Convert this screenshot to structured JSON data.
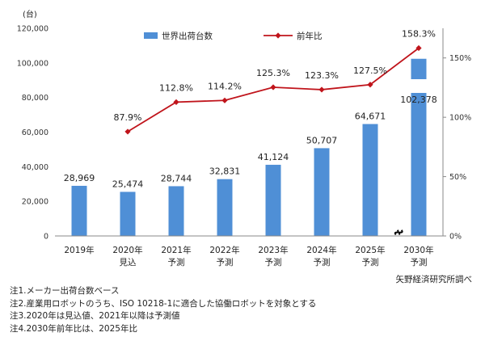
{
  "chart_data": {
    "type": "bar+line",
    "y_unit": "(台)",
    "categories": [
      "2019年",
      "2020年",
      "2021年",
      "2022年",
      "2023年",
      "2024年",
      "2025年",
      "2030年"
    ],
    "category_sublabels": [
      "",
      "見込",
      "予測",
      "予測",
      "予測",
      "予測",
      "予測",
      "予測"
    ],
    "series": [
      {
        "name": "世界出荷台数",
        "type": "bar",
        "axis": "left",
        "color": "#4f8fd6",
        "values": [
          28969,
          25474,
          28744,
          32831,
          41124,
          50707,
          64671,
          102378
        ],
        "labels": [
          "28,969",
          "25,474",
          "28,744",
          "32,831",
          "41,124",
          "50,707",
          "64,671",
          "102,378"
        ]
      },
      {
        "name": "前年比",
        "type": "line",
        "axis": "right",
        "color": "#c0141b",
        "values": [
          null,
          87.9,
          112.8,
          114.2,
          125.3,
          123.3,
          127.5,
          158.3
        ],
        "labels": [
          "",
          "87.9%",
          "112.8%",
          "114.2%",
          "125.3%",
          "123.3%",
          "127.5%",
          "158.3%"
        ]
      }
    ],
    "y_left": {
      "min": 0,
      "max": 120000,
      "ticks": [
        "0",
        "20,000",
        "40,000",
        "60,000",
        "80,000",
        "100,000",
        "120,000"
      ]
    },
    "y_right": {
      "min": 0,
      "max": 175,
      "ticks": [
        "0%",
        "50%",
        "100%",
        "150%"
      ]
    },
    "axis_break_before": "2030年",
    "legend_placement": "top",
    "grid": false
  },
  "source": "矢野経済研究所調べ",
  "notes": [
    "注1.メーカー出荷台数ベース",
    "注2.産業用ロボットのうち、ISO 10218-1に適合した協働ロボットを対象とする",
    "注3.2020年は見込値、2021年以降は予測値",
    "注4.2030年前年比は、2025年比"
  ]
}
